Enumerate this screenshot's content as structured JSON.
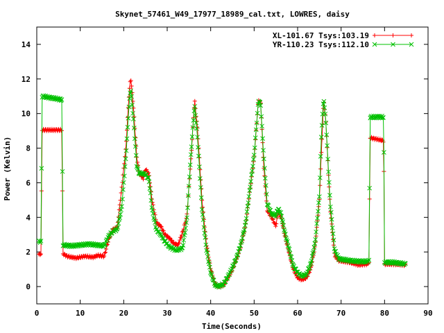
{
  "chart_data": {
    "type": "line",
    "title": "Skynet_57461_W49_17977_18989_cal.txt, LOWRES, daisy",
    "xlabel": "Time(Seconds)",
    "ylabel": "Power (Kelvin)",
    "xlim": [
      0,
      90
    ],
    "ylim": [
      -1,
      15
    ],
    "xticks": [
      0,
      10,
      20,
      30,
      40,
      50,
      60,
      70,
      80,
      90
    ],
    "yticks": [
      0,
      2,
      4,
      6,
      8,
      10,
      12,
      14
    ],
    "grid": false,
    "legend": "top-right",
    "series": [
      {
        "name": "XL-101.67 Tsys:103.19",
        "color": "#ff0000",
        "marker": "plus",
        "keypoints": [
          [
            0.5,
            1.85
          ],
          [
            1.0,
            1.9
          ],
          [
            1.2,
            9.05
          ],
          [
            5.8,
            9.05
          ],
          [
            6.0,
            1.9
          ],
          [
            7.0,
            1.75
          ],
          [
            9.0,
            1.65
          ],
          [
            11.0,
            1.75
          ],
          [
            13.0,
            1.7
          ],
          [
            14.0,
            1.8
          ],
          [
            15.5,
            1.75
          ],
          [
            16.5,
            2.7
          ],
          [
            17.5,
            3.3
          ],
          [
            18.5,
            3.4
          ],
          [
            19.5,
            5.6
          ],
          [
            20.5,
            8.0
          ],
          [
            21.2,
            11.0
          ],
          [
            21.6,
            12.1
          ],
          [
            22.2,
            10.5
          ],
          [
            23.0,
            7.5
          ],
          [
            23.5,
            6.6
          ],
          [
            24.5,
            6.25
          ],
          [
            25.0,
            6.8
          ],
          [
            25.8,
            6.5
          ],
          [
            26.5,
            5.0
          ],
          [
            27.5,
            3.7
          ],
          [
            28.5,
            3.5
          ],
          [
            29.5,
            3.0
          ],
          [
            30.5,
            2.8
          ],
          [
            31.5,
            2.5
          ],
          [
            32.5,
            2.4
          ],
          [
            33.5,
            3.1
          ],
          [
            34.5,
            4.0
          ],
          [
            35.5,
            7.5
          ],
          [
            36.3,
            10.8
          ],
          [
            37.0,
            9.0
          ],
          [
            38.0,
            5.0
          ],
          [
            39.0,
            2.5
          ],
          [
            40.0,
            1.0
          ],
          [
            41.0,
            0.15
          ],
          [
            41.8,
            0.0
          ],
          [
            43.0,
            0.1
          ],
          [
            44.0,
            0.5
          ],
          [
            45.0,
            1.0
          ],
          [
            46.0,
            1.6
          ],
          [
            47.0,
            2.4
          ],
          [
            48.0,
            3.5
          ],
          [
            49.0,
            5.5
          ],
          [
            50.0,
            7.5
          ],
          [
            51.0,
            10.8
          ],
          [
            51.5,
            10.6
          ],
          [
            52.2,
            7.0
          ],
          [
            53.0,
            4.4
          ],
          [
            54.0,
            4.0
          ],
          [
            55.0,
            3.5
          ],
          [
            55.5,
            4.3
          ],
          [
            56.2,
            4.0
          ],
          [
            57.0,
            3.0
          ],
          [
            58.0,
            2.0
          ],
          [
            59.0,
            1.0
          ],
          [
            60.0,
            0.5
          ],
          [
            61.0,
            0.4
          ],
          [
            62.0,
            0.5
          ],
          [
            63.0,
            1.0
          ],
          [
            64.0,
            2.3
          ],
          [
            65.0,
            5.0
          ],
          [
            65.5,
            8.0
          ],
          [
            66.0,
            10.8
          ],
          [
            66.5,
            9.5
          ],
          [
            67.5,
            4.5
          ],
          [
            68.5,
            1.8
          ],
          [
            69.5,
            1.5
          ],
          [
            72.0,
            1.4
          ],
          [
            74.0,
            1.25
          ],
          [
            76.0,
            1.3
          ],
          [
            76.4,
            1.4
          ],
          [
            76.7,
            8.6
          ],
          [
            79.5,
            8.45
          ],
          [
            79.8,
            8.4
          ],
          [
            80.0,
            1.3
          ],
          [
            82.0,
            1.3
          ],
          [
            84.8,
            1.25
          ]
        ]
      },
      {
        "name": "YR-110.23 Tsys:112.10",
        "color": "#00c000",
        "marker": "cross",
        "keypoints": [
          [
            0.5,
            2.6
          ],
          [
            1.0,
            2.6
          ],
          [
            1.2,
            11.0
          ],
          [
            5.8,
            10.8
          ],
          [
            6.0,
            2.4
          ],
          [
            8.0,
            2.35
          ],
          [
            10.0,
            2.4
          ],
          [
            12.0,
            2.45
          ],
          [
            14.0,
            2.4
          ],
          [
            15.5,
            2.35
          ],
          [
            16.5,
            2.9
          ],
          [
            17.5,
            3.2
          ],
          [
            18.5,
            3.3
          ],
          [
            19.5,
            4.5
          ],
          [
            20.5,
            7.5
          ],
          [
            21.2,
            10.4
          ],
          [
            21.6,
            11.5
          ],
          [
            22.3,
            9.5
          ],
          [
            23.0,
            7.0
          ],
          [
            23.5,
            6.55
          ],
          [
            25.0,
            6.5
          ],
          [
            25.8,
            6.2
          ],
          [
            26.5,
            4.5
          ],
          [
            27.5,
            3.3
          ],
          [
            28.5,
            3.0
          ],
          [
            29.5,
            2.6
          ],
          [
            30.5,
            2.3
          ],
          [
            32.0,
            2.1
          ],
          [
            33.5,
            2.2
          ],
          [
            34.5,
            3.8
          ],
          [
            35.5,
            7.8
          ],
          [
            36.3,
            10.5
          ],
          [
            37.0,
            8.5
          ],
          [
            38.0,
            4.5
          ],
          [
            39.0,
            2.2
          ],
          [
            40.0,
            0.8
          ],
          [
            41.0,
            0.1
          ],
          [
            41.8,
            0.0
          ],
          [
            43.0,
            0.15
          ],
          [
            44.0,
            0.6
          ],
          [
            45.0,
            1.1
          ],
          [
            46.0,
            1.7
          ],
          [
            47.0,
            2.5
          ],
          [
            48.0,
            3.6
          ],
          [
            49.0,
            5.6
          ],
          [
            50.0,
            7.6
          ],
          [
            51.0,
            10.8
          ],
          [
            51.5,
            10.5
          ],
          [
            52.2,
            7.5
          ],
          [
            53.0,
            4.8
          ],
          [
            54.0,
            4.2
          ],
          [
            55.0,
            4.1
          ],
          [
            55.5,
            4.5
          ],
          [
            56.2,
            4.2
          ],
          [
            57.0,
            3.2
          ],
          [
            58.0,
            2.2
          ],
          [
            59.0,
            1.2
          ],
          [
            60.0,
            0.8
          ],
          [
            61.0,
            0.6
          ],
          [
            62.0,
            0.7
          ],
          [
            63.0,
            1.3
          ],
          [
            64.0,
            2.5
          ],
          [
            65.0,
            5.2
          ],
          [
            65.5,
            9.0
          ],
          [
            66.0,
            10.9
          ],
          [
            66.5,
            9.5
          ],
          [
            67.5,
            4.8
          ],
          [
            68.5,
            2.1
          ],
          [
            69.5,
            1.6
          ],
          [
            72.0,
            1.5
          ],
          [
            74.0,
            1.45
          ],
          [
            76.0,
            1.45
          ],
          [
            76.4,
            1.5
          ],
          [
            76.7,
            9.8
          ],
          [
            79.5,
            9.8
          ],
          [
            79.8,
            9.8
          ],
          [
            80.0,
            1.4
          ],
          [
            82.0,
            1.4
          ],
          [
            84.8,
            1.3
          ]
        ]
      }
    ]
  }
}
